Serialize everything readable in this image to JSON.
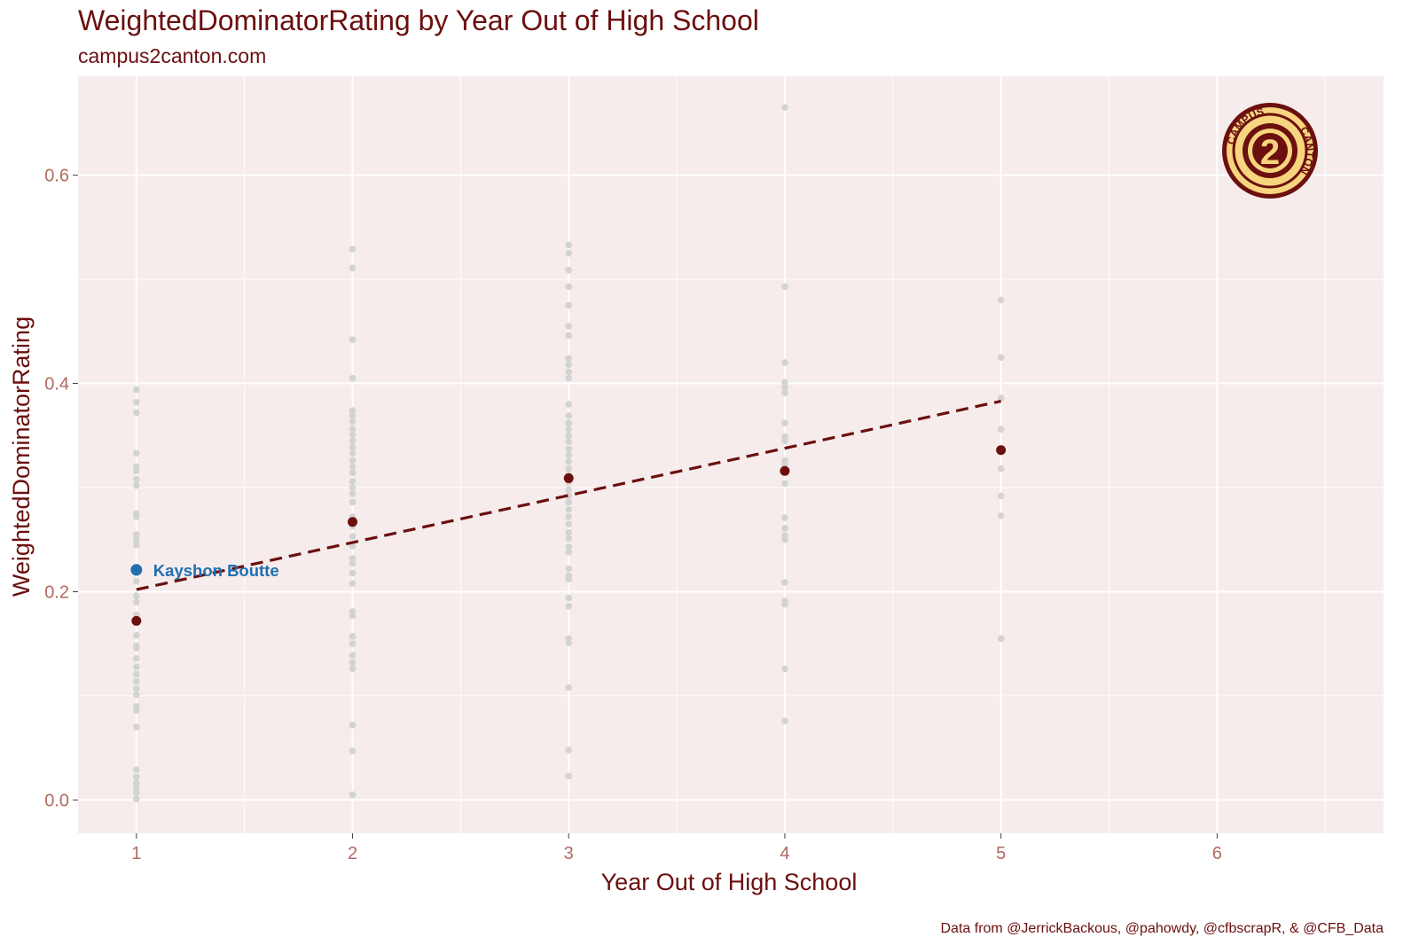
{
  "chart_data": {
    "type": "scatter",
    "title": "WeightedDominatorRating by Year Out of High School",
    "subtitle": "campus2canton.com",
    "xlabel": "Year Out of High School",
    "ylabel": "WeightedDominatorRating",
    "caption": "Data from @JerrickBackous, @pahowdy, @cfbscrapR, & @CFB_Data",
    "xlim": [
      0.73,
      6.77
    ],
    "ylim": [
      -0.032,
      0.695
    ],
    "x_ticks": [
      1,
      2,
      3,
      4,
      5,
      6
    ],
    "y_ticks": [
      0.0,
      0.2,
      0.4,
      0.6
    ],
    "y_tick_labels": [
      "0.0",
      "0.2",
      "0.4",
      "0.6"
    ],
    "grid": true,
    "colors": {
      "panel": "#f6ecec",
      "grid": "#ffffff",
      "points": "#d3d3d3",
      "means": "#6b0f0f",
      "trend": "#6b0f0f",
      "highlight": "#1f6fb2",
      "text": "#6b0f0f",
      "tick_text": "#b06a60"
    },
    "series": [
      {
        "role": "players",
        "points": [
          [
            1,
            0.394
          ],
          [
            1,
            0.382
          ],
          [
            1,
            0.372
          ],
          [
            1,
            0.333
          ],
          [
            1,
            0.32
          ],
          [
            1,
            0.316
          ],
          [
            1,
            0.308
          ],
          [
            1,
            0.302
          ],
          [
            1,
            0.275
          ],
          [
            1,
            0.272
          ],
          [
            1,
            0.255
          ],
          [
            1,
            0.25
          ],
          [
            1,
            0.245
          ],
          [
            1,
            0.218
          ],
          [
            1,
            0.21
          ],
          [
            1,
            0.196
          ],
          [
            1,
            0.19
          ],
          [
            1,
            0.178
          ],
          [
            1,
            0.174
          ],
          [
            1,
            0.158
          ],
          [
            1,
            0.148
          ],
          [
            1,
            0.146
          ],
          [
            1,
            0.136
          ],
          [
            1,
            0.128
          ],
          [
            1,
            0.121
          ],
          [
            1,
            0.114
          ],
          [
            1,
            0.107
          ],
          [
            1,
            0.101
          ],
          [
            1,
            0.09
          ],
          [
            1,
            0.086
          ],
          [
            1,
            0.07
          ],
          [
            1,
            0.029
          ],
          [
            1,
            0.022
          ],
          [
            1,
            0.016
          ],
          [
            1,
            0.011
          ],
          [
            1,
            0.007
          ],
          [
            1,
            0.001
          ],
          [
            2,
            0.529
          ],
          [
            2,
            0.511
          ],
          [
            2,
            0.442
          ],
          [
            2,
            0.405
          ],
          [
            2,
            0.374
          ],
          [
            2,
            0.369
          ],
          [
            2,
            0.363
          ],
          [
            2,
            0.356
          ],
          [
            2,
            0.351
          ],
          [
            2,
            0.345
          ],
          [
            2,
            0.339
          ],
          [
            2,
            0.333
          ],
          [
            2,
            0.326
          ],
          [
            2,
            0.32
          ],
          [
            2,
            0.314
          ],
          [
            2,
            0.306
          ],
          [
            2,
            0.3
          ],
          [
            2,
            0.294
          ],
          [
            2,
            0.286
          ],
          [
            2,
            0.272
          ],
          [
            2,
            0.263
          ],
          [
            2,
            0.253
          ],
          [
            2,
            0.244
          ],
          [
            2,
            0.232
          ],
          [
            2,
            0.227
          ],
          [
            2,
            0.218
          ],
          [
            2,
            0.208
          ],
          [
            2,
            0.181
          ],
          [
            2,
            0.177
          ],
          [
            2,
            0.157
          ],
          [
            2,
            0.15
          ],
          [
            2,
            0.139
          ],
          [
            2,
            0.132
          ],
          [
            2,
            0.126
          ],
          [
            2,
            0.072
          ],
          [
            2,
            0.047
          ],
          [
            2,
            0.005
          ],
          [
            3,
            0.533
          ],
          [
            3,
            0.525
          ],
          [
            3,
            0.509
          ],
          [
            3,
            0.493
          ],
          [
            3,
            0.475
          ],
          [
            3,
            0.455
          ],
          [
            3,
            0.446
          ],
          [
            3,
            0.424
          ],
          [
            3,
            0.418
          ],
          [
            3,
            0.411
          ],
          [
            3,
            0.405
          ],
          [
            3,
            0.38
          ],
          [
            3,
            0.369
          ],
          [
            3,
            0.362
          ],
          [
            3,
            0.356
          ],
          [
            3,
            0.35
          ],
          [
            3,
            0.344
          ],
          [
            3,
            0.337
          ],
          [
            3,
            0.331
          ],
          [
            3,
            0.325
          ],
          [
            3,
            0.318
          ],
          [
            3,
            0.312
          ],
          [
            3,
            0.305
          ],
          [
            3,
            0.298
          ],
          [
            3,
            0.292
          ],
          [
            3,
            0.286
          ],
          [
            3,
            0.279
          ],
          [
            3,
            0.272
          ],
          [
            3,
            0.265
          ],
          [
            3,
            0.257
          ],
          [
            3,
            0.251
          ],
          [
            3,
            0.243
          ],
          [
            3,
            0.238
          ],
          [
            3,
            0.222
          ],
          [
            3,
            0.215
          ],
          [
            3,
            0.212
          ],
          [
            3,
            0.194
          ],
          [
            3,
            0.186
          ],
          [
            3,
            0.155
          ],
          [
            3,
            0.151
          ],
          [
            3,
            0.108
          ],
          [
            3,
            0.048
          ],
          [
            3,
            0.023
          ],
          [
            4,
            0.665
          ],
          [
            4,
            0.493
          ],
          [
            4,
            0.42
          ],
          [
            4,
            0.401
          ],
          [
            4,
            0.396
          ],
          [
            4,
            0.391
          ],
          [
            4,
            0.362
          ],
          [
            4,
            0.349
          ],
          [
            4,
            0.345
          ],
          [
            4,
            0.326
          ],
          [
            4,
            0.322
          ],
          [
            4,
            0.304
          ],
          [
            4,
            0.271
          ],
          [
            4,
            0.261
          ],
          [
            4,
            0.254
          ],
          [
            4,
            0.25
          ],
          [
            4,
            0.209
          ],
          [
            4,
            0.191
          ],
          [
            4,
            0.188
          ],
          [
            4,
            0.126
          ],
          [
            4,
            0.076
          ],
          [
            5,
            0.48
          ],
          [
            5,
            0.425
          ],
          [
            5,
            0.386
          ],
          [
            5,
            0.356
          ],
          [
            5,
            0.318
          ],
          [
            5,
            0.292
          ],
          [
            5,
            0.273
          ],
          [
            5,
            0.155
          ]
        ]
      },
      {
        "role": "year-average",
        "points": [
          [
            1,
            0.172
          ],
          [
            2,
            0.267
          ],
          [
            3,
            0.309
          ],
          [
            4,
            0.316
          ],
          [
            5,
            0.336
          ]
        ]
      }
    ],
    "trendline": {
      "style": "dashed",
      "from": [
        1,
        0.202
      ],
      "to": [
        5,
        0.383
      ]
    },
    "highlight": {
      "label": "Kayshon Boutte",
      "x": 1,
      "y": 0.221
    }
  },
  "logo": {
    "name": "campus2canton-logo",
    "top_text": "CAMPUS",
    "center_text": "2",
    "right_text": "CANTON"
  }
}
